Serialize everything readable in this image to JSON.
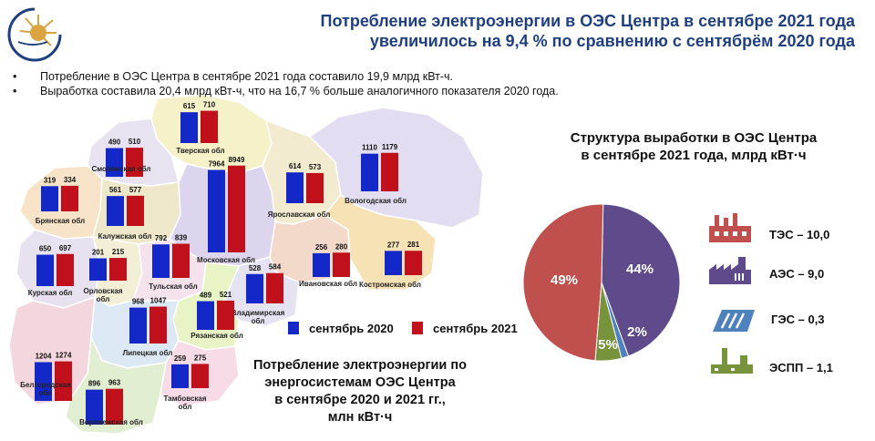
{
  "header": {
    "title_line1": "Потребление электроэнергии в ОЭС Центра в сентябре 2021 года",
    "title_line2": "увеличилось на 9,4 % по сравнению с сентябрём 2020 года"
  },
  "bullets": [
    "Потребление  в ОЭС Центра в сентябре  2021 года составило  19,9 млрд кВт-ч.",
    "Выработка  составила  20,4 млрд кВт-ч, что  на 16,7 % больше аналогичного  показателя  2020 года."
  ],
  "colors": {
    "series_2020": "#1428c8",
    "series_2021": "#c0101c",
    "title": "#1f3f7f"
  },
  "legend": {
    "label_2020": "сентябрь 2020",
    "label_2021": "сентябрь 2021"
  },
  "caption": {
    "line1": "Потребление электроэнергии по",
    "line2": "энергосистемам ОЭС Центра",
    "line3": "в сентябре 2020 и 2021 гг.,",
    "line4": "млн кВт·ч"
  },
  "pie_title": {
    "line1": "Структура выработки в ОЭС Центра",
    "line2": "в сентябре 2021 года, млрд кВт·ч"
  },
  "sources": [
    {
      "label": "ТЭС – 10,0",
      "icon": "thermal-plant-icon"
    },
    {
      "label": "АЭС – 9,0",
      "icon": "nuclear-plant-icon"
    },
    {
      "label": "ГЭС – 0,3",
      "icon": "hydro-plant-icon"
    },
    {
      "label": "ЭСПП – 1,1",
      "icon": "industrial-plant-icon"
    }
  ],
  "chart_data": [
    {
      "type": "bar",
      "series_names": [
        "сентябрь 2020",
        "сентябрь 2021"
      ],
      "regions": [
        {
          "name": "Тверская обл",
          "v2020": 615,
          "v2021": 710
        },
        {
          "name": "Смоленская обл",
          "v2020": 490,
          "v2021": 510
        },
        {
          "name": "Брянская обл",
          "v2020": 319,
          "v2021": 334
        },
        {
          "name": "Калужская обл",
          "v2020": 561,
          "v2021": 577
        },
        {
          "name": "Московская обл",
          "v2020": 7964,
          "v2021": 8949
        },
        {
          "name": "Ярославская обл",
          "v2020": 614,
          "v2021": 573
        },
        {
          "name": "Вологодская обл",
          "v2020": 1110,
          "v2021": 1179
        },
        {
          "name": "Курская обл",
          "v2020": 650,
          "v2021": 697
        },
        {
          "name": "Орловская обл",
          "v2020": 201,
          "v2021": 215
        },
        {
          "name": "Тульская обл",
          "v2020": 792,
          "v2021": 839
        },
        {
          "name": "Ивановская обл",
          "v2020": 256,
          "v2021": 280
        },
        {
          "name": "Костромская обл",
          "v2020": 277,
          "v2021": 281
        },
        {
          "name": "Владимирская обл",
          "v2020": 528,
          "v2021": 584
        },
        {
          "name": "Рязанская обл",
          "v2020": 489,
          "v2021": 521
        },
        {
          "name": "Липецкая обл",
          "v2020": 968,
          "v2021": 1047
        },
        {
          "name": "Белгородская обл",
          "v2020": 1204,
          "v2021": 1274
        },
        {
          "name": "Тамбовская обл",
          "v2020": 259,
          "v2021": 275
        },
        {
          "name": "Воронежская обл",
          "v2020": 896,
          "v2021": 963
        }
      ]
    },
    {
      "type": "pie",
      "slices": [
        {
          "name": "ТЭС",
          "value": 10.0,
          "percent_label": "49%",
          "color": "#c0504d"
        },
        {
          "name": "АЭС",
          "value": 9.0,
          "percent_label": "44%",
          "color": "#5f4b8b"
        },
        {
          "name": "ГЭС",
          "value": 0.3,
          "percent_label": "2%",
          "color": "#4f81bd"
        },
        {
          "name": "ЭСПП",
          "value": 1.1,
          "percent_label": "5%",
          "color": "#77933c"
        }
      ]
    }
  ]
}
